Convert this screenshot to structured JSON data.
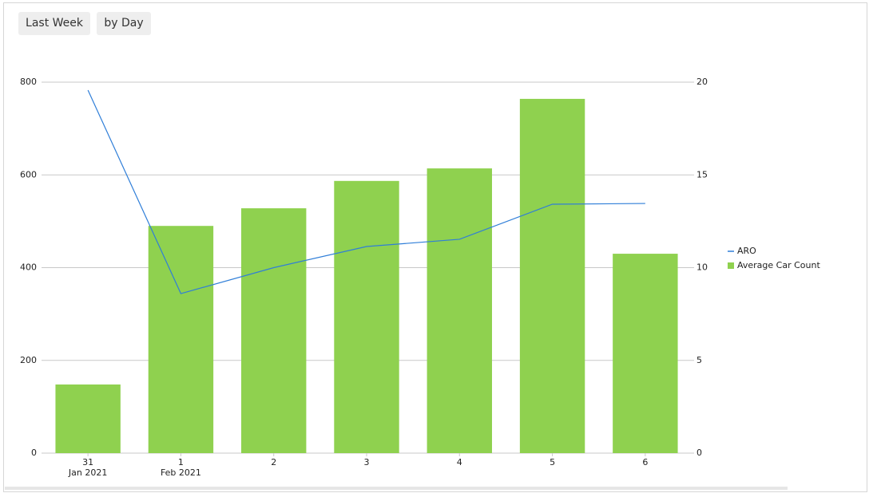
{
  "buttons": [
    "Last Week",
    "by Day"
  ],
  "chart_data": {
    "type": "bar",
    "categories": [
      "31",
      "1",
      "2",
      "3",
      "4",
      "5",
      "6"
    ],
    "x_sublabels": [
      "Jan 2021",
      "Feb 2021",
      null,
      null,
      null,
      null,
      null
    ],
    "series": [
      {
        "name": "ARO",
        "type": "line",
        "axis": "y2",
        "color": "#2f7ed8",
        "values": [
          19.57,
          8.6,
          10.0,
          11.14,
          11.53,
          13.42,
          13.46
        ]
      },
      {
        "name": "Average Car Count",
        "type": "bar",
        "color": "#8fd14f",
        "values": [
          148,
          490,
          528,
          587,
          614,
          764,
          430
        ]
      }
    ],
    "ylim": [
      0,
      800
    ],
    "yticks": [
      0,
      200,
      400,
      600,
      800
    ],
    "y2lim": [
      0,
      20
    ],
    "y2ticks": [
      0,
      5,
      10,
      15,
      20
    ],
    "grid": true,
    "legend": "right"
  }
}
